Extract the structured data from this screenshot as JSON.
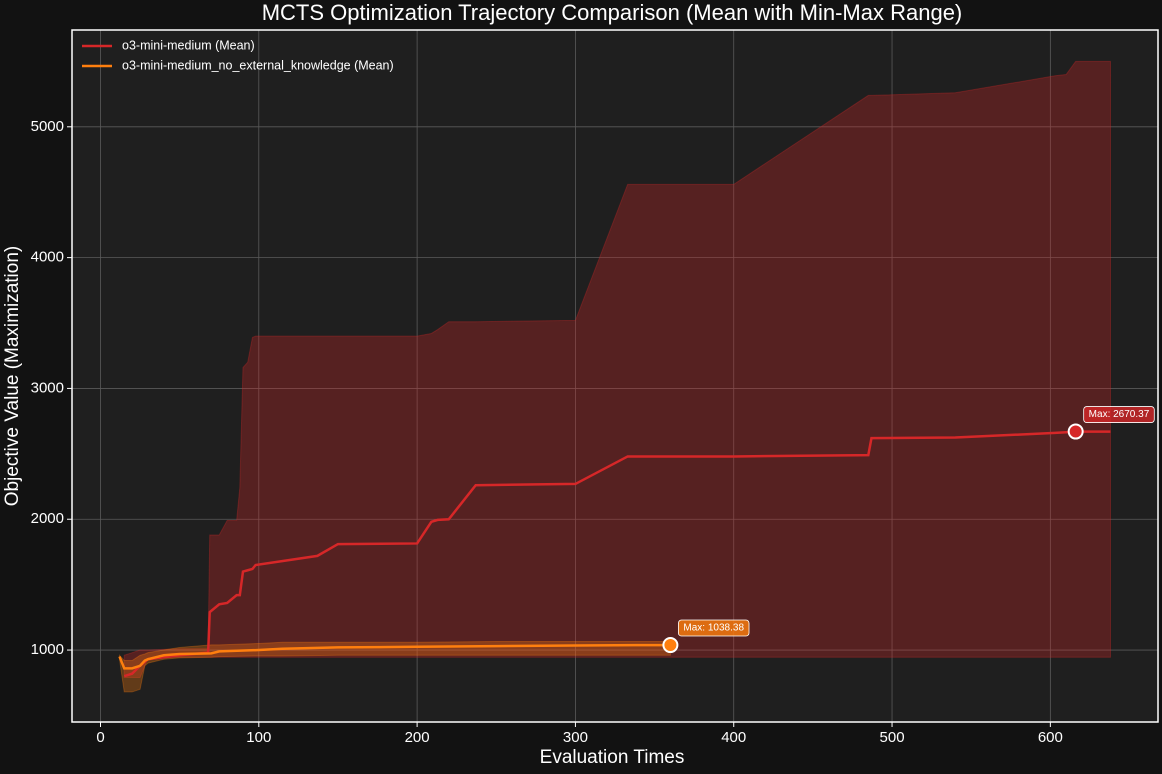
{
  "chart_data": {
    "type": "line",
    "title": "MCTS Optimization Trajectory Comparison (Mean with Min-Max Range)",
    "x_label": "Evaluation Times",
    "y_label": "Objective Value (Maximization)",
    "xlim": [
      -18,
      668
    ],
    "ylim": [
      450,
      5740
    ],
    "xticks": [
      0,
      100,
      200,
      300,
      400,
      500,
      600
    ],
    "yticks": [
      1000,
      2000,
      3000,
      4000,
      5000
    ],
    "grid": true,
    "legend": "upper left",
    "series": [
      {
        "name": "o3-mini-medium (Mean)",
        "color": "#d62728",
        "x": [
          15,
          20,
          25,
          30,
          50,
          68,
          69,
          75,
          80,
          86,
          88,
          90,
          93,
          96,
          98,
          137,
          150,
          200,
          209,
          213,
          220,
          237,
          300,
          333,
          400,
          485,
          487,
          540,
          603,
          610,
          616,
          638
        ],
        "values": [
          800,
          820,
          880,
          930,
          960,
          980,
          1290,
          1350,
          1360,
          1420,
          1420,
          1600,
          1610,
          1620,
          1650,
          1720,
          1810,
          1815,
          1980,
          1995,
          2000,
          2260,
          2270,
          2480,
          2480,
          2490,
          2620,
          2625,
          2660,
          2665,
          2670,
          2670
        ],
        "min": [
          790,
          790,
          790,
          940,
          945,
          945,
          945,
          945,
          945,
          945,
          945,
          945,
          945,
          945,
          945,
          945,
          945,
          945,
          945,
          945,
          945,
          945,
          945,
          945,
          945,
          945,
          945,
          945,
          945,
          945,
          945,
          945
        ],
        "max": [
          960,
          980,
          1000,
          1000,
          1010,
          1010,
          1880,
          1880,
          1990,
          1990,
          2240,
          3160,
          3200,
          3390,
          3400,
          3400,
          3400,
          3400,
          3420,
          3450,
          3510,
          3510,
          3520,
          4560,
          4560,
          5240,
          5240,
          5260,
          5390,
          5400,
          5500,
          5500
        ]
      },
      {
        "name": "o3-mini-medium_no_external_knowledge (Mean)",
        "color": "#ff7f0e",
        "x": [
          12,
          15,
          20,
          25,
          28,
          30,
          40,
          50,
          70,
          75,
          100,
          115,
          150,
          200,
          250,
          300,
          350,
          360
        ],
        "values": [
          950,
          860,
          860,
          880,
          920,
          930,
          960,
          970,
          975,
          990,
          1000,
          1010,
          1020,
          1025,
          1030,
          1035,
          1038,
          1038
        ],
        "min": [
          930,
          680,
          680,
          700,
          880,
          900,
          930,
          940,
          945,
          950,
          955,
          955,
          960,
          960,
          960,
          960,
          960,
          960
        ],
        "max": [
          960,
          920,
          920,
          960,
          970,
          980,
          1000,
          1020,
          1040,
          1040,
          1050,
          1060,
          1060,
          1060,
          1065,
          1065,
          1065,
          1065
        ]
      }
    ],
    "annotations": [
      {
        "x": 616,
        "y": 2670.37,
        "label": "Max: 2670.37"
      },
      {
        "x": 360,
        "y": 1038.38,
        "label": "Max: 1038.38"
      }
    ]
  }
}
